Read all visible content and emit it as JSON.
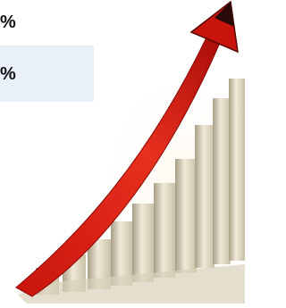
{
  "table": {
    "rows": [
      [
        "%"
      ],
      [
        "%"
      ]
    ]
  }
}
